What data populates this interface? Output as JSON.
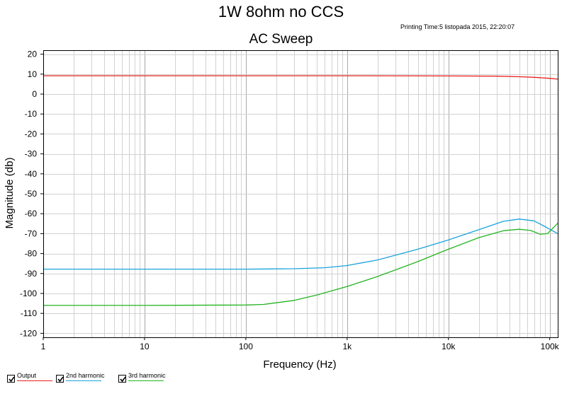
{
  "header": {
    "title": "1W 8ohm no CCS",
    "printing_time": "Printing Time:5 listopada 2015, 22:20:07"
  },
  "legend": [
    {
      "label": "Output",
      "color": "#e8201f",
      "checked": true
    },
    {
      "label": "2nd harmonic",
      "color": "#1aa3dc",
      "checked": true
    },
    {
      "label": "3rd harmonic",
      "color": "#22b41f",
      "checked": true
    }
  ],
  "chart_data": {
    "type": "line",
    "title": "AC Sweep",
    "xlabel": "Frequency (Hz)",
    "ylabel": "Magnitude (db)",
    "xscale": "log",
    "xlim": [
      1,
      120000
    ],
    "ylim": [
      -122,
      22
    ],
    "x_tick_labels": [
      "1",
      "10",
      "100",
      "1k",
      "10k",
      "100k"
    ],
    "x_tick_values": [
      1,
      10,
      100,
      1000,
      10000,
      100000
    ],
    "y_ticks": [
      20,
      10,
      0,
      -10,
      -20,
      -30,
      -40,
      -50,
      -60,
      -70,
      -80,
      -90,
      -100,
      -110,
      -120
    ],
    "grid": true,
    "series": [
      {
        "name": "Output",
        "color": "#e8201f",
        "x": [
          1,
          10,
          100,
          1000,
          10000,
          30000,
          50000,
          70000,
          100000,
          120000
        ],
        "y": [
          9.2,
          9.2,
          9.2,
          9.2,
          9.1,
          9.0,
          8.7,
          8.4,
          7.9,
          7.5
        ]
      },
      {
        "name": "2nd harmonic",
        "color": "#1aa3dc",
        "x": [
          1,
          10,
          100,
          300,
          600,
          1000,
          2000,
          5000,
          10000,
          20000,
          35000,
          50000,
          70000,
          90000,
          120000
        ],
        "y": [
          -87.8,
          -87.8,
          -87.8,
          -87.6,
          -87.1,
          -86.0,
          -83.2,
          -77.8,
          -73.2,
          -68.0,
          -63.8,
          -62.7,
          -63.6,
          -66.5,
          -70.0
        ]
      },
      {
        "name": "3rd harmonic",
        "color": "#22b41f",
        "x": [
          1,
          10,
          100,
          150,
          300,
          500,
          1000,
          2000,
          5000,
          10000,
          20000,
          35000,
          50000,
          65000,
          80000,
          95000,
          120000
        ],
        "y": [
          -106.0,
          -106.0,
          -105.8,
          -105.5,
          -103.5,
          -100.8,
          -96.5,
          -91.5,
          -84.0,
          -77.8,
          -72.0,
          -68.5,
          -67.8,
          -68.4,
          -70.3,
          -70.0,
          -64.8
        ]
      }
    ]
  }
}
